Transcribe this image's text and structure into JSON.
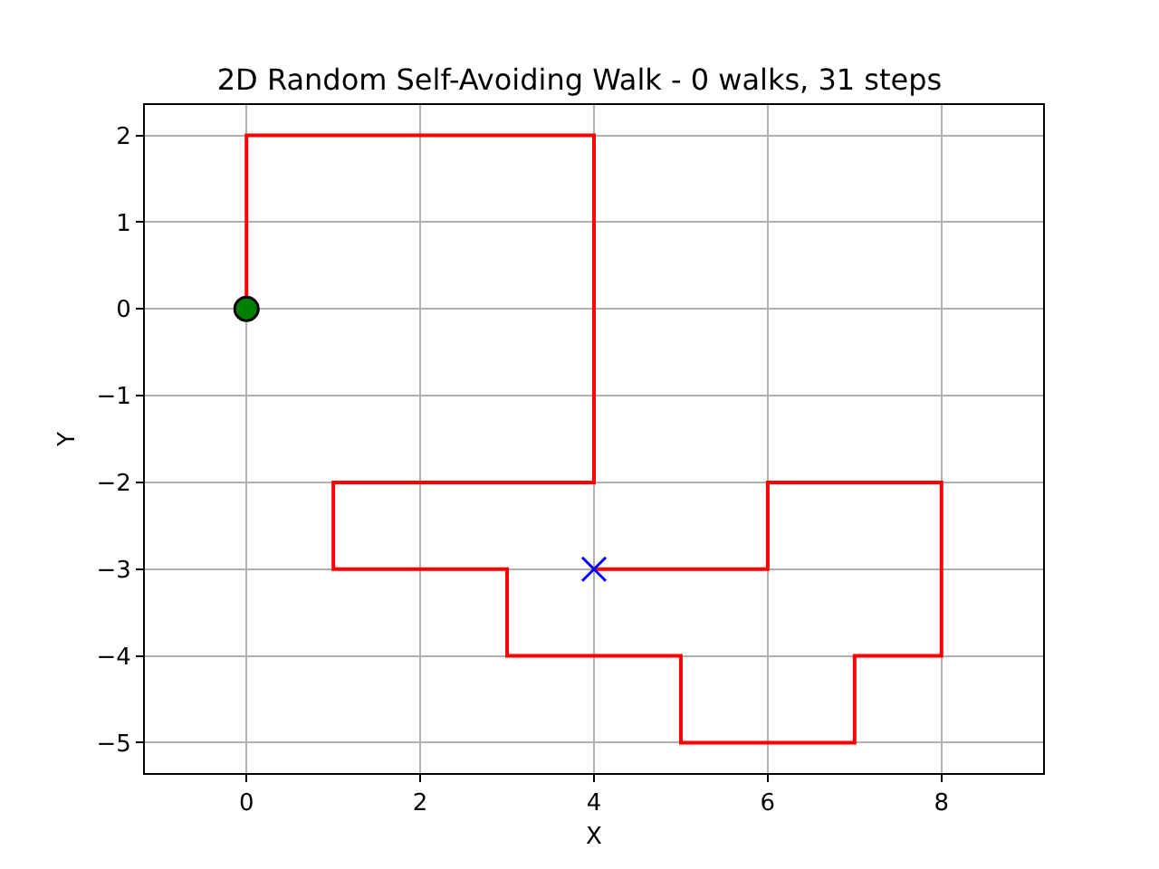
{
  "chart_data": {
    "type": "line",
    "title": "2D Random Self-Avoiding Walk - 0 walks, 31 steps",
    "xlabel": "X",
    "ylabel": "Y",
    "series": [
      {
        "color": "#ff0000",
        "marker": "none",
        "x": [
          0,
          0,
          0,
          1,
          2,
          3,
          4,
          4,
          4,
          4,
          4,
          3,
          2,
          1,
          1,
          2,
          3,
          3,
          4,
          5,
          5,
          6,
          7,
          7,
          8,
          8,
          8,
          7,
          6,
          6,
          5,
          4
        ],
        "values": [
          0,
          1,
          2,
          2,
          2,
          2,
          2,
          1,
          0,
          -1,
          -2,
          -2,
          -2,
          -2,
          -3,
          -3,
          -3,
          -4,
          -4,
          -4,
          -5,
          -5,
          -5,
          -4,
          -4,
          -3,
          -2,
          -2,
          -2,
          -3,
          -3,
          -3
        ]
      },
      {
        "type": "scatter",
        "color": "#008000",
        "marker": "circle",
        "x": [
          0
        ],
        "values": [
          0
        ]
      },
      {
        "type": "scatter",
        "color": "#0000ff",
        "marker": "cross",
        "x": [
          4
        ],
        "values": [
          -3
        ]
      }
    ],
    "xlim": [
      -1.17,
      9.17
    ],
    "ylim": [
      -5.35,
      2.35
    ],
    "xticks": [
      0,
      2,
      4,
      6,
      8
    ],
    "yticks": [
      {
        "value": -5,
        "label": "−5"
      },
      {
        "value": -4,
        "label": "−4"
      },
      {
        "value": -3,
        "label": "−3"
      },
      {
        "value": -2,
        "label": "−2"
      },
      {
        "value": -1,
        "label": "−1"
      },
      0,
      1,
      2
    ],
    "grid": true
  }
}
